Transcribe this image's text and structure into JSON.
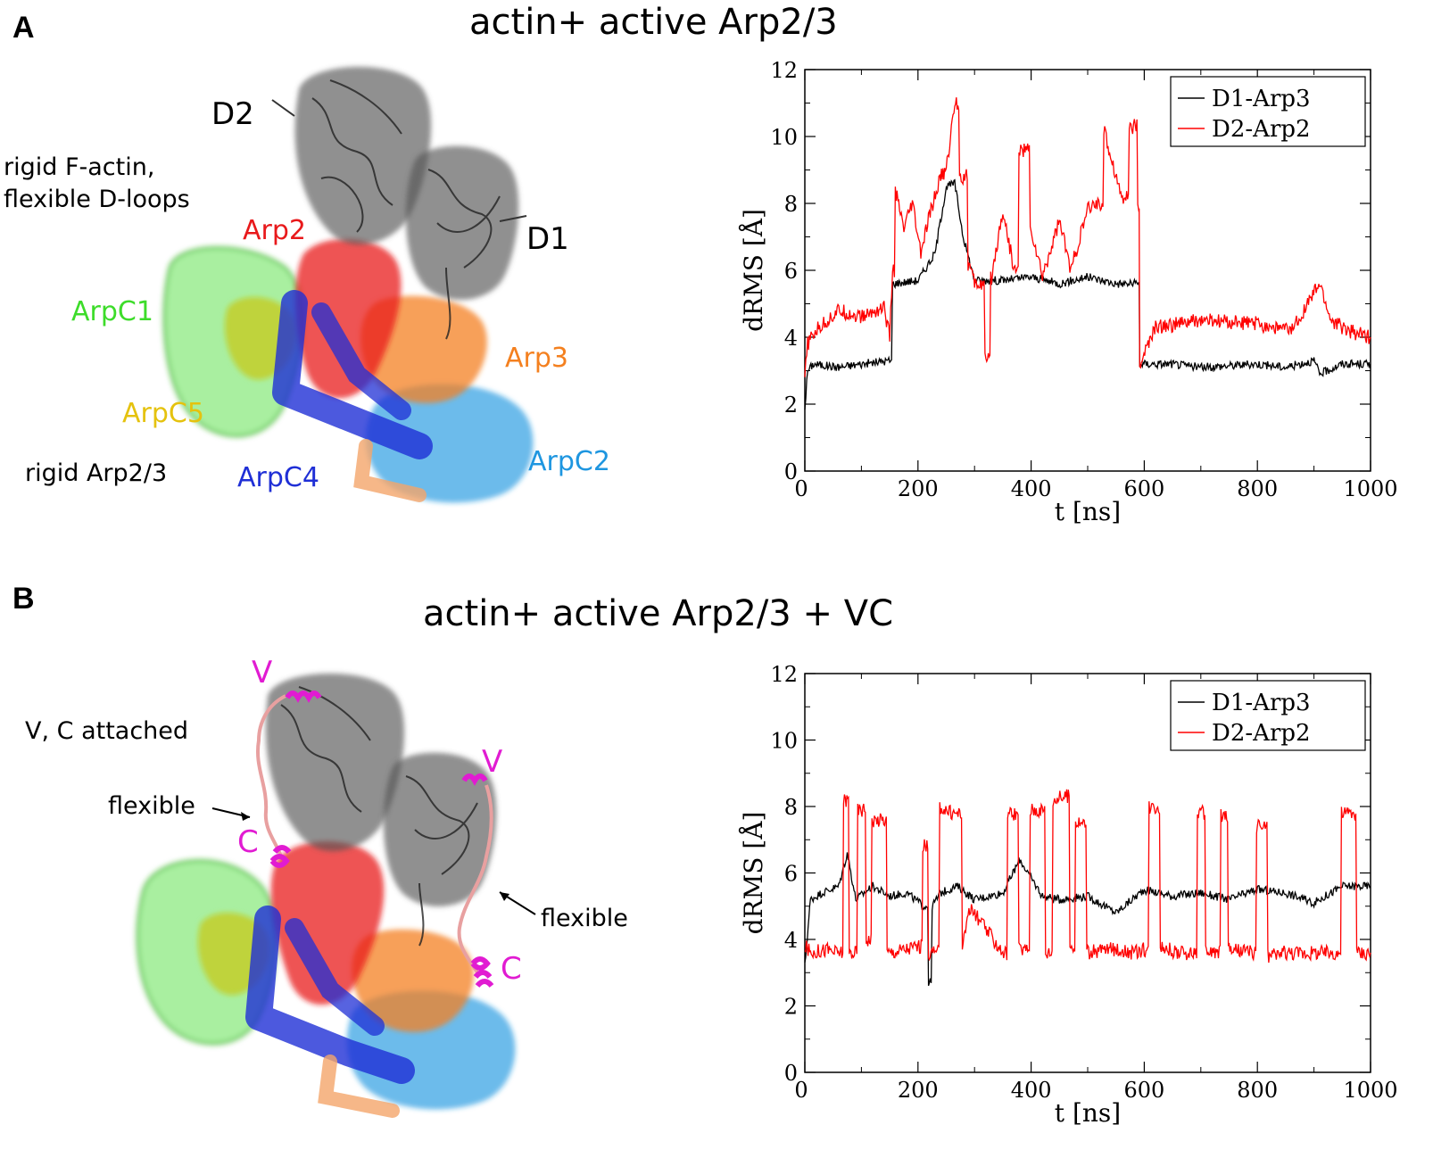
{
  "panels": [
    {
      "letter": "A",
      "title": "actin+ active Arp2/3",
      "labels": {
        "d2": "D2",
        "d1": "D1",
        "note1": "rigid F-actin,",
        "note2": "flexible D-loops",
        "arp2": "Arp2",
        "arpc1": "ArpC1",
        "arp3": "Arp3",
        "arpc5": "ArpC5",
        "rigid": "rigid Arp2/3",
        "arpc4": "ArpC4",
        "arpc2": "ArpC2"
      }
    },
    {
      "letter": "B",
      "title": "actin+ active Arp2/3 + VC",
      "labels": {
        "v_top": "V",
        "vc_attached": "V, C attached",
        "flexible_left": "flexible",
        "c_left": "C",
        "v_right": "V",
        "flexible_right": "flexible",
        "c_right": "C"
      }
    }
  ],
  "colors": {
    "arp2": "#e8191b",
    "arp3": "#f4801f",
    "arpc1": "#3ddc2a",
    "arpc5": "#e5c20e",
    "arpc4": "#1f2fd6",
    "arpc2": "#1e96e0",
    "actin": "#333333",
    "vc": "#e11bd2",
    "series_d1": "#000000",
    "series_d2": "#ff0000"
  },
  "chart_data": [
    {
      "type": "line",
      "xlabel": "t [ns]",
      "ylabel": "dRMS [Å]",
      "xlim": [
        0,
        1000
      ],
      "ylim": [
        0,
        12
      ],
      "xticks": [
        0,
        200,
        400,
        600,
        800,
        1000
      ],
      "yticks": [
        0,
        2,
        4,
        6,
        8,
        10,
        12
      ],
      "legend_position": "top-right",
      "series": [
        {
          "name": "D1-Arp3",
          "x": [
            0,
            5,
            15,
            60,
            100,
            150,
            155,
            200,
            230,
            250,
            265,
            280,
            300,
            350,
            400,
            450,
            500,
            550,
            590,
            592,
            650,
            700,
            800,
            850,
            900,
            910,
            950,
            1000
          ],
          "y": [
            1.9,
            3.0,
            3.2,
            3.1,
            3.2,
            3.3,
            5.6,
            5.7,
            6.5,
            8.5,
            8.6,
            7.0,
            5.7,
            5.7,
            5.8,
            5.6,
            5.8,
            5.6,
            5.6,
            3.2,
            3.2,
            3.1,
            3.2,
            3.1,
            3.3,
            2.9,
            3.2,
            3.2
          ]
        },
        {
          "name": "D2-Arp2",
          "x": [
            0,
            5,
            20,
            60,
            100,
            140,
            150,
            155,
            160,
            175,
            190,
            205,
            220,
            240,
            250,
            265,
            275,
            290,
            300,
            320,
            330,
            350,
            370,
            380,
            400,
            420,
            450,
            470,
            500,
            515,
            530,
            560,
            575,
            590,
            592,
            620,
            700,
            800,
            860,
            910,
            930,
            960,
            1000
          ],
          "y": [
            2.8,
            3.8,
            4.2,
            4.8,
            4.6,
            4.9,
            4.0,
            6.0,
            8.4,
            7.2,
            8.0,
            6.5,
            7.6,
            8.8,
            9.0,
            11.0,
            8.8,
            6.2,
            5.6,
            3.3,
            5.8,
            7.8,
            6.0,
            9.6,
            7.2,
            5.8,
            7.5,
            6.0,
            7.8,
            8.0,
            10.1,
            8.2,
            10.3,
            7.8,
            3.2,
            4.3,
            4.5,
            4.4,
            4.2,
            5.6,
            4.5,
            4.2,
            4.0
          ]
        }
      ]
    },
    {
      "type": "line",
      "xlabel": "t [ns]",
      "ylabel": "dRMS [Å]",
      "xlim": [
        0,
        1000
      ],
      "ylim": [
        0,
        12
      ],
      "xticks": [
        0,
        200,
        400,
        600,
        800,
        1000
      ],
      "yticks": [
        0,
        2,
        4,
        6,
        8,
        10,
        12
      ],
      "legend_position": "top-right",
      "series": [
        {
          "name": "D1-Arp3",
          "x": [
            0,
            10,
            30,
            60,
            75,
            90,
            120,
            150,
            180,
            210,
            220,
            225,
            240,
            270,
            300,
            350,
            380,
            420,
            450,
            500,
            550,
            600,
            650,
            700,
            750,
            800,
            850,
            900,
            950,
            1000
          ],
          "y": [
            3.2,
            5.2,
            5.4,
            5.6,
            6.6,
            5.2,
            5.6,
            5.3,
            5.4,
            5.0,
            2.7,
            5.0,
            5.4,
            5.6,
            5.2,
            5.4,
            6.4,
            5.3,
            5.2,
            5.3,
            4.8,
            5.5,
            5.3,
            5.4,
            5.2,
            5.5,
            5.4,
            5.1,
            5.6,
            5.6
          ]
        },
        {
          "name": "D2-Arp2",
          "x": [
            0,
            10,
            40,
            55,
            70,
            80,
            95,
            110,
            120,
            150,
            200,
            210,
            220,
            240,
            260,
            280,
            290,
            350,
            360,
            380,
            400,
            430,
            440,
            460,
            470,
            480,
            500,
            530,
            560,
            580,
            600,
            610,
            630,
            660,
            700,
            710,
            740,
            750,
            790,
            800,
            820,
            850,
            900,
            940,
            950,
            980,
            1000
          ],
          "y": [
            3.8,
            3.6,
            3.7,
            3.6,
            8.2,
            3.6,
            7.9,
            4.0,
            7.6,
            3.6,
            3.8,
            6.8,
            3.6,
            8.0,
            7.8,
            3.8,
            5.0,
            3.6,
            7.8,
            3.7,
            7.9,
            3.6,
            8.2,
            8.3,
            3.8,
            7.5,
            3.6,
            3.7,
            3.7,
            3.6,
            3.7,
            8.0,
            3.8,
            3.6,
            7.8,
            3.6,
            7.7,
            3.7,
            3.6,
            7.4,
            3.5,
            3.6,
            3.6,
            3.6,
            7.8,
            3.6,
            3.6
          ]
        }
      ]
    }
  ]
}
